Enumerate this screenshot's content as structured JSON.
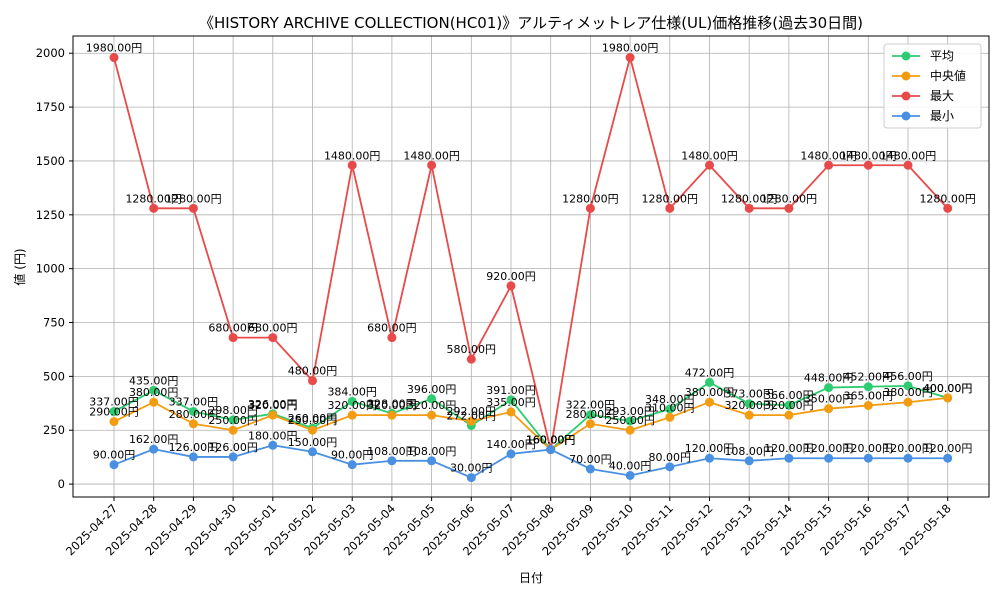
{
  "chart_data": {
    "type": "line",
    "title": "《HISTORY ARCHIVE COLLECTION(HC01)》アルティメットレア仕様(UL)価格推移(過去30日間)",
    "xlabel": "日付",
    "ylabel": "値 (円)",
    "ylim": [
      -60,
      2080
    ],
    "yticks": [
      0,
      250,
      500,
      750,
      1000,
      1250,
      1500,
      1750,
      2000
    ],
    "grid": true,
    "legend_position": "top-right",
    "categories": [
      "2025-04-27",
      "2025-04-28",
      "2025-04-29",
      "2025-04-30",
      "2025-05-01",
      "2025-05-02",
      "2025-05-03",
      "2025-05-04",
      "2025-05-05",
      "2025-05-06",
      "2025-05-07",
      "2025-05-08",
      "2025-05-09",
      "2025-05-10",
      "2025-05-11",
      "2025-05-12",
      "2025-05-13",
      "2025-05-14",
      "2025-05-15",
      "2025-05-16",
      "2025-05-17",
      "2025-05-18"
    ],
    "series": [
      {
        "name": "平均",
        "color": "#2ecc71",
        "values": [
          337,
          435,
          337,
          298,
          326,
          260,
          384,
          328,
          396,
          272,
          391,
          160,
          322,
          293,
          348,
          472,
          373,
          366,
          448,
          452,
          456,
          400
        ],
        "labels": [
          "337.00円",
          "435.00円",
          "337.00円",
          "298.00円",
          "326.00円",
          "260.00円",
          "384.00円",
          "328.00円",
          "396.00円",
          "272.00円",
          "391.00円",
          "160.00円",
          "322.00円",
          "293.00円",
          "348.00円",
          "472.00円",
          "373.00円",
          "366.00円",
          "448.00円",
          "452.00円",
          "456.00円",
          "400.00円"
        ]
      },
      {
        "name": "中央値",
        "color": "#f39c12",
        "values": [
          290,
          380,
          280,
          250,
          320,
          250,
          320,
          320,
          320,
          292,
          335,
          160,
          280,
          250,
          310,
          380,
          320,
          320,
          350,
          365,
          380,
          400
        ],
        "labels": [
          "290.00円",
          "380.00円",
          "280.00円",
          "250.00円",
          "320.00円",
          "250.00円",
          "320.00円",
          "320.00円",
          "320.00円",
          "292.00円",
          "335.00円",
          "160.00円",
          "280.00円",
          "250.00円",
          "310.00円",
          "380.00円",
          "320.00円",
          "320.00円",
          "350.00円",
          "365.00円",
          "380.00円",
          "400.00円"
        ]
      },
      {
        "name": "最大",
        "color": "#e84a4a",
        "values": [
          1980,
          1280,
          1280,
          680,
          680,
          480,
          1480,
          680,
          1480,
          580,
          920,
          160,
          1280,
          1980,
          1280,
          1480,
          1280,
          1280,
          1480,
          1480,
          1480,
          1280
        ],
        "labels": [
          "1980.00円",
          "1280.00円",
          "1280.00円",
          "680.00円",
          "680.00円",
          "480.00円",
          "1480.00円",
          "680.00円",
          "1480.00円",
          "580.00円",
          "920.00円",
          "160.00円",
          "1280.00円",
          "1980.00円",
          "1280.00円",
          "1480.00円",
          "1280.00円",
          "1280.00円",
          "1480.00円",
          "1480.00円",
          "1480.00円",
          "1280.00円"
        ]
      },
      {
        "name": "最小",
        "color": "#4a90e2",
        "values": [
          90,
          162,
          126,
          126,
          180,
          150,
          90,
          108,
          108,
          30,
          140,
          160,
          70,
          40,
          80,
          120,
          108,
          120,
          120,
          120,
          120,
          120
        ],
        "labels": [
          "90.00円",
          "162.00円",
          "126.00円",
          "126.00円",
          "180.00円",
          "150.00円",
          "90.00円",
          "108.00円",
          "108.00円",
          "30.00円",
          "140.00円",
          "160.00円",
          "70.00円",
          "40.00円",
          "80.00円",
          "120.00円",
          "108.00円",
          "120.00円",
          "120.00円",
          "120.00円",
          "120.00円",
          "120.00円"
        ]
      }
    ]
  }
}
